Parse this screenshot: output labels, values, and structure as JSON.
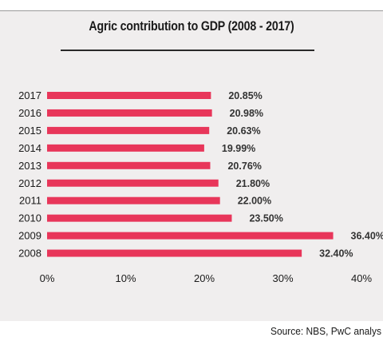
{
  "chart_data": {
    "type": "bar",
    "orientation": "horizontal",
    "title": "Agric contribution to GDP (2008 - 2017)",
    "categories": [
      "2017",
      "2016",
      "2015",
      "2014",
      "2013",
      "2012",
      "2011",
      "2010",
      "2009",
      "2008"
    ],
    "values": [
      20.85,
      20.98,
      20.63,
      19.99,
      20.76,
      21.8,
      22.0,
      23.5,
      36.4,
      32.4
    ],
    "value_labels": [
      "20.85%",
      "20.98%",
      "20.63%",
      "19.99%",
      "20.76%",
      "21.80%",
      "22.00%",
      "23.50%",
      "36.40%",
      "32.40%"
    ],
    "xticks": [
      "0%",
      "10%",
      "20%",
      "30%",
      "40%"
    ],
    "xlim": [
      0,
      40
    ],
    "bar_color": "#e8365a",
    "grid": false
  },
  "source": "Source: NBS, PwC analys"
}
